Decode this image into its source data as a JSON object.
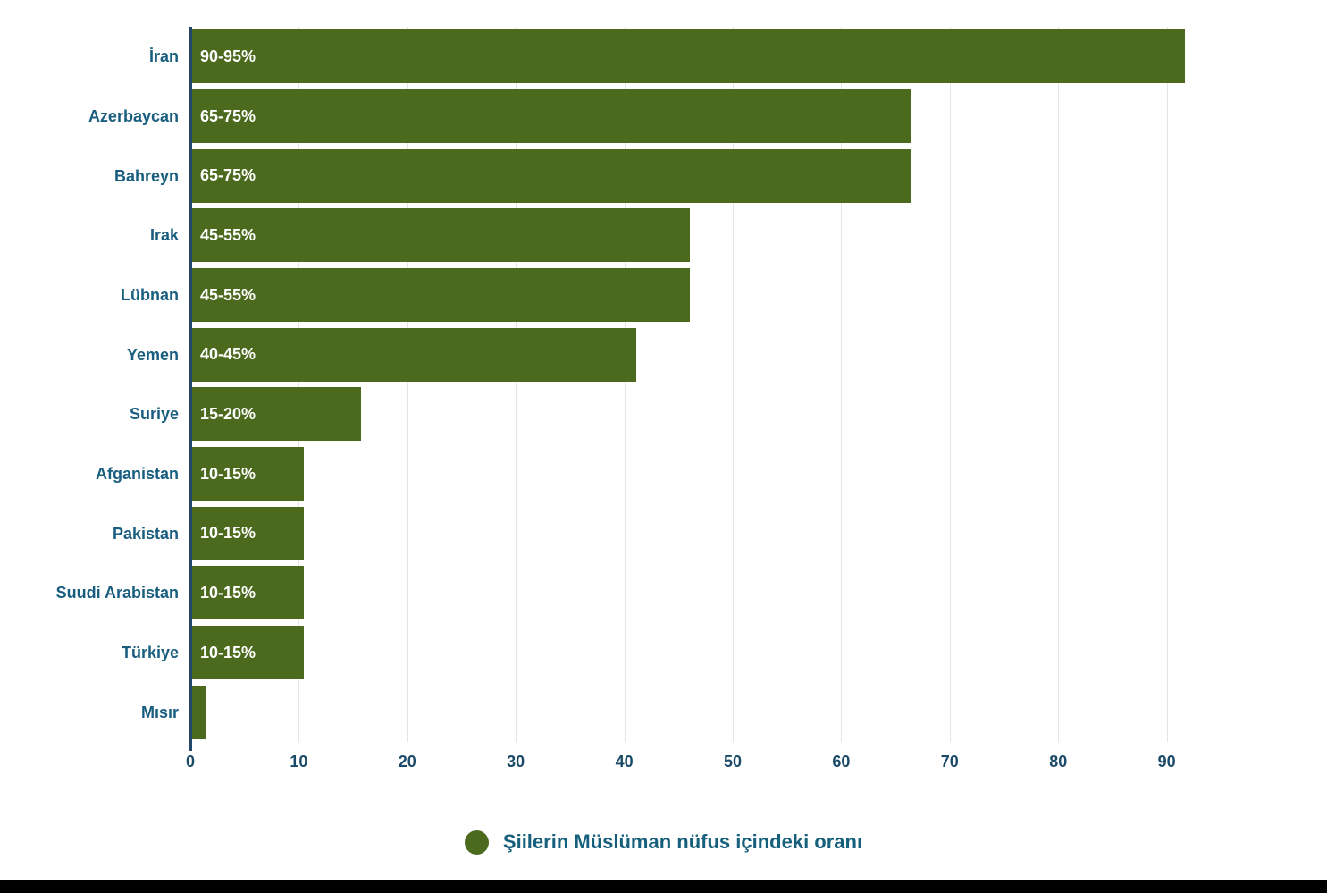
{
  "chart_data": {
    "type": "bar",
    "orientation": "horizontal",
    "title": "",
    "categories": [
      "İran",
      "Azerbaycan",
      "Bahreyn",
      "Irak",
      "Lübnan",
      "Yemen",
      "Suriye",
      "Afganistan",
      "Pakistan",
      "Suudi Arabistan",
      "Türkiye",
      "Mısır"
    ],
    "values": [
      91.5,
      66.3,
      66.3,
      45.9,
      45.9,
      40.9,
      15.6,
      10.3,
      10.3,
      10.3,
      10.3,
      1.2
    ],
    "bar_labels": [
      "90-95%",
      "65-75%",
      "65-75%",
      "45-55%",
      "45-55%",
      "40-45%",
      "15-20%",
      "10-15%",
      "10-15%",
      "10-15%",
      "10-15%",
      ""
    ],
    "x_ticks": [
      0,
      10,
      20,
      30,
      40,
      50,
      60,
      70,
      80,
      90
    ],
    "xlim": [
      0,
      102.8
    ],
    "xlabel": "",
    "ylabel": "",
    "grid": "vertical",
    "legend_position": "bottom",
    "bar_color": "#4b6a1e",
    "category_label_color": "#195e7f",
    "tick_label_color": "#1b4a68",
    "axis_color": "#224668"
  },
  "legend": {
    "label": "Şiilerin Müslüman nüfus içindeki oranı"
  }
}
